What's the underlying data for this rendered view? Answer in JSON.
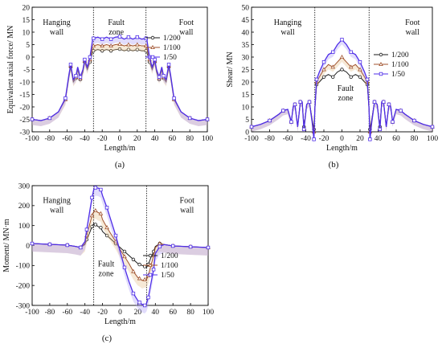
{
  "figure": {
    "legend_labels": [
      "1/200",
      "1/100",
      "1/50"
    ],
    "colors": {
      "s200": "#1a1a1a",
      "s100": "#a0522d",
      "s50": "#4f2ee8",
      "band100": "#e6c08a",
      "band50": "#a99bf7"
    }
  },
  "chart_data": [
    {
      "type": "line",
      "panel_label": "(a)",
      "xlabel": "Length/m",
      "ylabel": "Equivalent axial force/ MN",
      "xlim": [
        -100,
        100
      ],
      "ylim": [
        -30,
        20
      ],
      "x_ticks": [
        "-100",
        "-80",
        "-60",
        "-40",
        "-20",
        "0",
        "20",
        "40",
        "60",
        "80",
        "100"
      ],
      "y_ticks": [
        "-30",
        "-25",
        "-20",
        "-15",
        "-10",
        "-5",
        "0",
        "5",
        "10",
        "15",
        "20"
      ],
      "region_labels": [
        {
          "lines": [
            "Hanging",
            "wall"
          ]
        },
        {
          "lines": [
            "Fault",
            "zone"
          ]
        },
        {
          "lines": [
            "Foot",
            "wall"
          ]
        }
      ],
      "boundaries": [
        -30,
        30
      ],
      "series": [
        {
          "name": "1/200",
          "x": [
            -100,
            -90,
            -80,
            -70,
            -62,
            -58,
            -56,
            -53,
            -50,
            -48,
            -45,
            -42,
            -40,
            -37,
            -34,
            -31,
            -30,
            -25,
            -20,
            -15,
            -10,
            -5,
            0,
            5,
            10,
            15,
            20,
            25,
            30,
            31,
            34,
            37,
            40,
            42,
            45,
            48,
            50,
            53,
            56,
            58,
            62,
            70,
            80,
            90,
            100
          ],
          "y": [
            -25,
            -25.5,
            -24.5,
            -22,
            -17,
            -8,
            -4,
            -10,
            -8.5,
            -5,
            -9,
            -6,
            -2,
            -5,
            -2,
            2,
            2.5,
            3,
            2.5,
            3,
            2.5,
            3,
            3.2,
            2.5,
            3,
            2.5,
            3,
            2.5,
            2.5,
            2,
            -2,
            -5,
            -2,
            -6,
            -9,
            -5,
            -8.5,
            -10,
            -4,
            -8,
            -17,
            -22,
            -24.5,
            -25.5,
            -25
          ]
        },
        {
          "name": "1/100",
          "x": [
            -100,
            -90,
            -80,
            -70,
            -62,
            -58,
            -56,
            -53,
            -50,
            -48,
            -45,
            -42,
            -40,
            -37,
            -34,
            -31,
            -30,
            -25,
            -20,
            -15,
            -10,
            -5,
            0,
            5,
            10,
            15,
            20,
            25,
            30,
            31,
            34,
            37,
            40,
            42,
            45,
            48,
            50,
            53,
            56,
            58,
            62,
            70,
            80,
            90,
            100
          ],
          "y": [
            -25,
            -25.5,
            -24.5,
            -22,
            -17,
            -7.5,
            -3.5,
            -9.5,
            -8,
            -4.5,
            -8.5,
            -5.5,
            -1.5,
            -4.5,
            -1,
            4,
            4.5,
            5,
            4.5,
            5,
            4.5,
            5,
            5.2,
            4.5,
            5,
            4.5,
            5,
            4.5,
            4.5,
            4,
            -1,
            -4.5,
            -1.5,
            -5.5,
            -8.5,
            -4.5,
            -8,
            -9.5,
            -3.5,
            -7.5,
            -17,
            -22,
            -24.5,
            -25.5,
            -25
          ]
        },
        {
          "name": "1/50",
          "x": [
            -100,
            -90,
            -80,
            -70,
            -62,
            -58,
            -56,
            -53,
            -50,
            -48,
            -45,
            -42,
            -40,
            -37,
            -34,
            -31,
            -30,
            -25,
            -20,
            -15,
            -10,
            -5,
            0,
            5,
            10,
            15,
            20,
            25,
            30,
            31,
            34,
            37,
            40,
            42,
            45,
            48,
            50,
            53,
            56,
            58,
            62,
            70,
            80,
            90,
            100
          ],
          "y": [
            -25,
            -25.5,
            -24.5,
            -22,
            -16.5,
            -7,
            -3,
            -9,
            -7.5,
            -4,
            -8,
            -5,
            -1,
            -4,
            0,
            7,
            7.5,
            8,
            7.2,
            8,
            7.2,
            8,
            8.2,
            7.2,
            8,
            7.2,
            8,
            7.2,
            7.5,
            7,
            0,
            -4,
            -1,
            -5,
            -8,
            -4,
            -7.5,
            -9,
            -3,
            -7,
            -16.5,
            -22,
            -24.5,
            -25.5,
            -25
          ]
        }
      ]
    },
    {
      "type": "line",
      "panel_label": "(b)",
      "xlabel": "Length/m",
      "ylabel": "Shear/ MN",
      "xlim": [
        -100,
        100
      ],
      "ylim": [
        0,
        50
      ],
      "x_ticks": [
        "-100",
        "-80",
        "-60",
        "-40",
        "-20",
        "0",
        "20",
        "40",
        "60",
        "80",
        "100"
      ],
      "y_ticks": [
        "0",
        "5",
        "10",
        "15",
        "20",
        "25",
        "30",
        "35",
        "40",
        "45",
        "50"
      ],
      "region_labels": [
        {
          "lines": [
            "Hanging",
            "wall"
          ]
        },
        {
          "lines": [
            "Fault",
            "zone"
          ]
        },
        {
          "lines": [
            "Foot",
            "wall"
          ]
        }
      ],
      "boundaries": [
        -30,
        30
      ],
      "series": [
        {
          "name": "1/200",
          "x": [
            -100,
            -90,
            -80,
            -70,
            -65,
            -60,
            -56,
            -54,
            -52,
            -49,
            -46,
            -44,
            -42,
            -39,
            -36,
            -33,
            -31,
            -30,
            -28,
            -25,
            -20,
            -15,
            -10,
            -5,
            0,
            5,
            10,
            15,
            20,
            25,
            28,
            30,
            31,
            33,
            36,
            39,
            42,
            44,
            46,
            49,
            52,
            54,
            56,
            60,
            65,
            70,
            80,
            90,
            100
          ],
          "y": [
            2,
            3,
            4.5,
            7,
            8.5,
            9,
            4,
            10,
            11,
            2,
            12,
            12,
            2,
            11,
            12,
            5,
            1,
            9,
            19,
            20,
            22,
            23,
            22,
            24,
            25,
            24,
            22,
            23,
            22,
            20,
            19,
            9,
            1,
            5,
            12,
            11,
            2,
            12,
            12,
            2,
            11,
            10,
            4,
            9,
            8.5,
            7,
            4.5,
            3,
            2
          ]
        },
        {
          "name": "1/100",
          "x": [
            -100,
            -90,
            -80,
            -70,
            -65,
            -60,
            -56,
            -54,
            -52,
            -49,
            -46,
            -44,
            -42,
            -39,
            -36,
            -33,
            -31,
            -30,
            -28,
            -25,
            -20,
            -15,
            -10,
            -5,
            0,
            5,
            10,
            15,
            20,
            25,
            28,
            30,
            31,
            33,
            36,
            39,
            42,
            44,
            46,
            49,
            52,
            54,
            56,
            60,
            65,
            70,
            80,
            90,
            100
          ],
          "y": [
            2,
            3,
            4.5,
            7,
            8.5,
            9,
            4,
            10,
            11,
            2,
            12,
            12,
            1.5,
            11,
            12,
            4.5,
            0,
            9,
            20,
            22,
            25,
            27,
            26,
            28,
            30,
            28,
            26,
            27,
            25,
            22,
            20,
            9,
            0,
            4.5,
            12,
            11,
            1.5,
            12,
            12,
            2,
            11,
            10,
            4,
            9,
            8.5,
            7,
            4.5,
            3,
            2
          ]
        },
        {
          "name": "1/50",
          "x": [
            -100,
            -90,
            -80,
            -70,
            -65,
            -60,
            -56,
            -54,
            -52,
            -49,
            -46,
            -44,
            -42,
            -39,
            -36,
            -33,
            -31,
            -30,
            -28,
            -25,
            -20,
            -15,
            -10,
            -5,
            0,
            5,
            10,
            15,
            20,
            25,
            28,
            30,
            31,
            33,
            36,
            39,
            42,
            44,
            46,
            49,
            52,
            54,
            56,
            60,
            65,
            70,
            80,
            90,
            100
          ],
          "y": [
            2,
            3,
            4.5,
            7,
            8.5,
            9,
            4,
            10,
            11,
            2,
            12,
            12,
            1,
            11,
            12,
            4,
            -3,
            9,
            21,
            24,
            28,
            31,
            32,
            35,
            37,
            35,
            32,
            31,
            28,
            24,
            21,
            9,
            -3,
            4,
            12,
            11,
            1,
            12,
            12,
            2,
            11,
            10,
            4,
            9,
            8.5,
            7,
            4.5,
            3,
            2
          ]
        }
      ]
    },
    {
      "type": "line",
      "panel_label": "(c)",
      "xlabel": "Length/m",
      "ylabel": "Moment/ MN·m",
      "xlim": [
        -100,
        100
      ],
      "ylim": [
        -300,
        300
      ],
      "x_ticks": [
        "-100",
        "-80",
        "-60",
        "-40",
        "-20",
        "0",
        "20",
        "40",
        "60",
        "80",
        "100"
      ],
      "y_ticks": [
        "-300",
        "-200",
        "-100",
        "0",
        "100",
        "200",
        "300"
      ],
      "region_labels": [
        {
          "lines": [
            "Hanging",
            "wall"
          ]
        },
        {
          "lines": [
            "Fault",
            "zone"
          ]
        },
        {
          "lines": [
            "Foot",
            "wall"
          ]
        }
      ],
      "boundaries": [
        -30,
        30
      ],
      "series": [
        {
          "name": "1/200",
          "x": [
            -100,
            -90,
            -80,
            -70,
            -60,
            -50,
            -45,
            -40,
            -38,
            -35,
            -32,
            -30,
            -28,
            -25,
            -22,
            -20,
            -15,
            -10,
            -5,
            0,
            5,
            10,
            15,
            20,
            22,
            25,
            28,
            30,
            32,
            35,
            38,
            40,
            45,
            50,
            60,
            70,
            80,
            90,
            100
          ],
          "y": [
            10,
            8,
            6,
            4,
            2,
            -5,
            -10,
            5,
            30,
            60,
            95,
            110,
            105,
            95,
            90,
            70,
            50,
            30,
            10,
            -10,
            -30,
            -50,
            -70,
            -90,
            -95,
            -100,
            -105,
            -110,
            -95,
            -60,
            -30,
            -5,
            10,
            5,
            -2,
            -4,
            -6,
            -8,
            -10
          ]
        },
        {
          "name": "1/100",
          "x": [
            -100,
            -90,
            -80,
            -70,
            -60,
            -50,
            -45,
            -40,
            -38,
            -35,
            -32,
            -30,
            -28,
            -25,
            -22,
            -20,
            -15,
            -10,
            -5,
            0,
            5,
            10,
            15,
            20,
            22,
            25,
            28,
            30,
            32,
            35,
            38,
            40,
            45,
            50,
            60,
            70,
            80,
            90,
            100
          ],
          "y": [
            10,
            8,
            6,
            4,
            2,
            -5,
            -10,
            10,
            50,
            100,
            150,
            170,
            175,
            165,
            160,
            130,
            90,
            55,
            20,
            -20,
            -55,
            -90,
            -130,
            -160,
            -165,
            -175,
            -170,
            -170,
            -150,
            -100,
            -50,
            -10,
            10,
            5,
            -2,
            -4,
            -6,
            -8,
            -10
          ]
        },
        {
          "name": "1/50",
          "x": [
            -100,
            -90,
            -80,
            -70,
            -60,
            -50,
            -45,
            -40,
            -38,
            -35,
            -32,
            -30,
            -28,
            -25,
            -22,
            -20,
            -15,
            -10,
            -5,
            0,
            5,
            10,
            15,
            20,
            22,
            25,
            28,
            30,
            32,
            35,
            38,
            40,
            45,
            50,
            60,
            70,
            80,
            90,
            100
          ],
          "y": [
            10,
            8,
            6,
            4,
            2,
            -5,
            -10,
            20,
            80,
            160,
            240,
            280,
            290,
            288,
            280,
            250,
            190,
            120,
            50,
            -30,
            -110,
            -180,
            -240,
            -275,
            -285,
            -295,
            -300,
            -290,
            -260,
            -190,
            -120,
            -40,
            -5,
            5,
            -2,
            -4,
            -6,
            -8,
            -10
          ]
        }
      ]
    }
  ]
}
